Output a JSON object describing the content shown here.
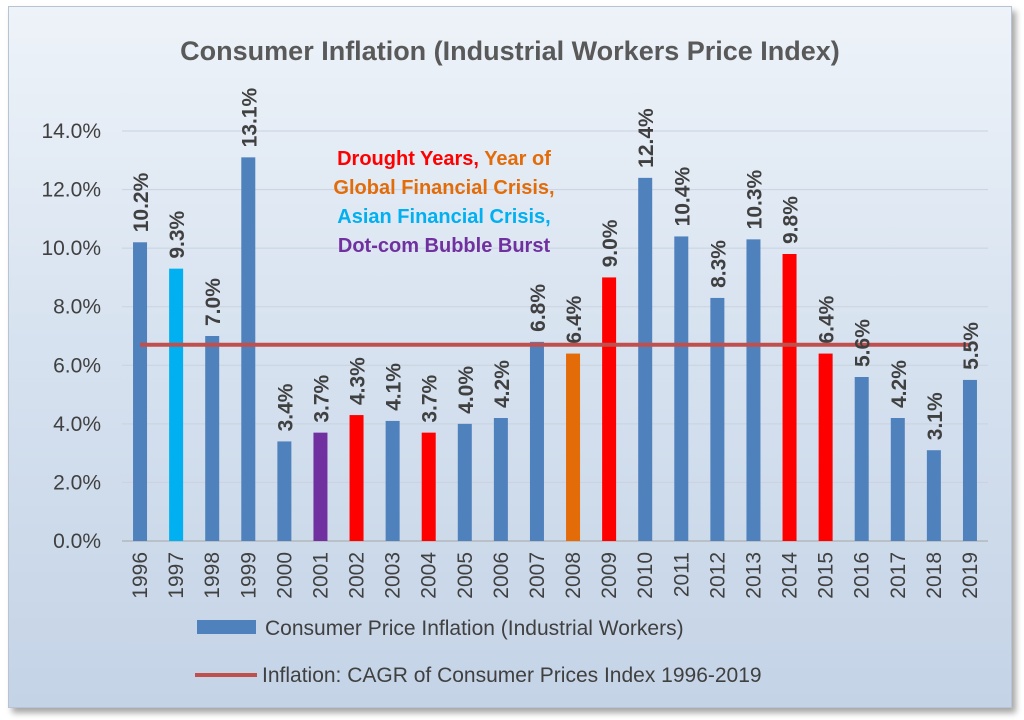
{
  "chart_data": {
    "type": "bar",
    "title": "Consumer Inflation (Industrial Workers Price Index)",
    "categories": [
      "1996",
      "1997",
      "1998",
      "1999",
      "2000",
      "2001",
      "2002",
      "2003",
      "2004",
      "2005",
      "2006",
      "2007",
      "2008",
      "2009",
      "2010",
      "2011",
      "2012",
      "2013",
      "2014",
      "2015",
      "2016",
      "2017",
      "2018",
      "2019"
    ],
    "series": [
      {
        "name": "Consumer Price Inflation (Industrial Workers)",
        "values": [
          10.2,
          9.3,
          7.0,
          13.1,
          3.4,
          3.7,
          4.3,
          4.1,
          3.7,
          4.0,
          4.2,
          6.8,
          6.4,
          9.0,
          12.4,
          10.4,
          8.3,
          10.3,
          9.8,
          6.4,
          5.6,
          4.2,
          3.1,
          5.5
        ],
        "data_labels": [
          "10.2%",
          "9.3%",
          "7.0%",
          "13.1%",
          "3.4%",
          "3.7%",
          "4.3%",
          "4.1%",
          "3.7%",
          "4.0%",
          "4.2%",
          "6.8%",
          "6.4%",
          "9.0%",
          "12.4%",
          "10.4%",
          "8.3%",
          "10.3%",
          "9.8%",
          "6.4%",
          "5.6%",
          "4.2%",
          "3.1%",
          "5.5%"
        ],
        "bar_colors": [
          "#4f81bd",
          "#00b0f0",
          "#4f81bd",
          "#4f81bd",
          "#4f81bd",
          "#7030a0",
          "#ff0000",
          "#4f81bd",
          "#ff0000",
          "#4f81bd",
          "#4f81bd",
          "#4f81bd",
          "#e36c09",
          "#ff0000",
          "#4f81bd",
          "#4f81bd",
          "#4f81bd",
          "#4f81bd",
          "#ff0000",
          "#ff0000",
          "#4f81bd",
          "#4f81bd",
          "#4f81bd",
          "#4f81bd"
        ]
      },
      {
        "name": "Inflation: CAGR of Consumer Prices Index 1996-2019",
        "type": "line",
        "value": 6.7,
        "color": "#c0504d"
      }
    ],
    "ylim": [
      0,
      14
    ],
    "ytick_values": [
      0,
      2,
      4,
      6,
      8,
      10,
      12,
      14
    ],
    "ytick_labels": [
      "0.0%",
      "2.0%",
      "4.0%",
      "6.0%",
      "8.0%",
      "10.0%",
      "12.0%",
      "14.0%"
    ],
    "grid": "horizontal",
    "legend_position": "bottom",
    "annotation": [
      [
        {
          "text": "Drought Years,",
          "color": "#ff0000"
        },
        {
          "text": " Year of",
          "color": "#e36c09"
        }
      ],
      [
        {
          "text": "Global Financial Crisis,",
          "color": "#e36c09"
        }
      ],
      [
        {
          "text": "Asian Financial Crisis,",
          "color": "#00b0f0"
        }
      ],
      [
        {
          "text": "Dot-com Bubble Burst",
          "color": "#7030a0"
        }
      ]
    ]
  }
}
